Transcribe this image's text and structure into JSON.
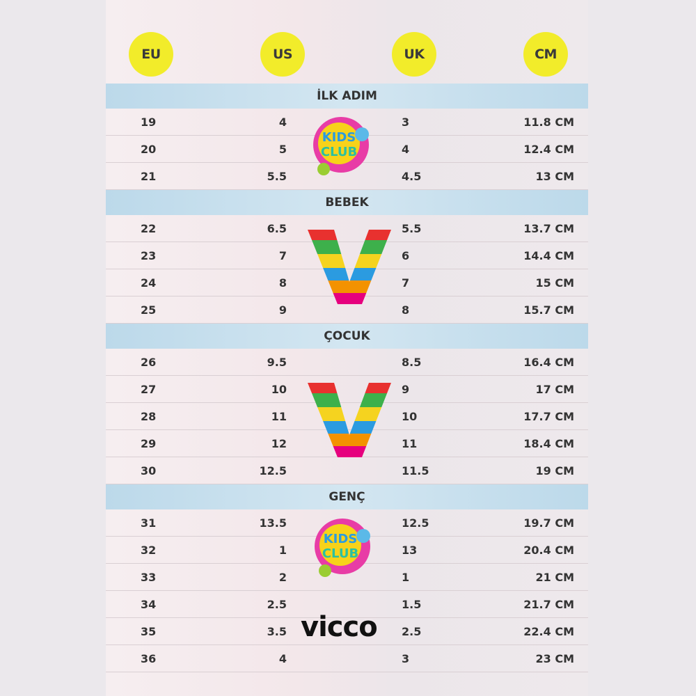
{
  "headers": [
    "EU",
    "US",
    "UK",
    "CM"
  ],
  "sections": [
    {
      "title": "İLK ADIM",
      "rows": [
        [
          "19",
          "4",
          "3",
          "11.8 CM"
        ],
        [
          "20",
          "5",
          "4",
          "12.4 CM"
        ],
        [
          "21",
          "5.5",
          "4.5",
          "13 CM"
        ]
      ]
    },
    {
      "title": "BEBEK",
      "rows": [
        [
          "22",
          "6.5",
          "5.5",
          "13.7 CM"
        ],
        [
          "23",
          "7",
          "6",
          "14.4 CM"
        ],
        [
          "24",
          "8",
          "7",
          "15 CM"
        ],
        [
          "25",
          "9",
          "8",
          "15.7 CM"
        ]
      ]
    },
    {
      "title": "ÇOCUK",
      "rows": [
        [
          "26",
          "9.5",
          "8.5",
          "16.4 CM"
        ],
        [
          "27",
          "10",
          "9",
          "17 CM"
        ],
        [
          "28",
          "11",
          "10",
          "17.7 CM"
        ],
        [
          "29",
          "12",
          "11",
          "18.4 CM"
        ],
        [
          "30",
          "12.5",
          "11.5",
          "19 CM"
        ]
      ]
    },
    {
      "title": "GENÇ",
      "rows": [
        [
          "31",
          "13.5",
          "12.5",
          "19.7 CM"
        ],
        [
          "32",
          "1",
          "13",
          "20.4 CM"
        ],
        [
          "33",
          "2",
          "1",
          "21 CM"
        ],
        [
          "34",
          "2.5",
          "1.5",
          "21.7 CM"
        ],
        [
          "35",
          "3.5",
          "2.5",
          "22.4 CM"
        ],
        [
          "36",
          "4",
          "3",
          "23 CM"
        ]
      ]
    }
  ],
  "logos": {
    "kids_club": "KIDS CLUB",
    "vicco": "vicco"
  },
  "colors": {
    "header_circle": "#f2ec2a",
    "section_band": "#c6dfee"
  }
}
